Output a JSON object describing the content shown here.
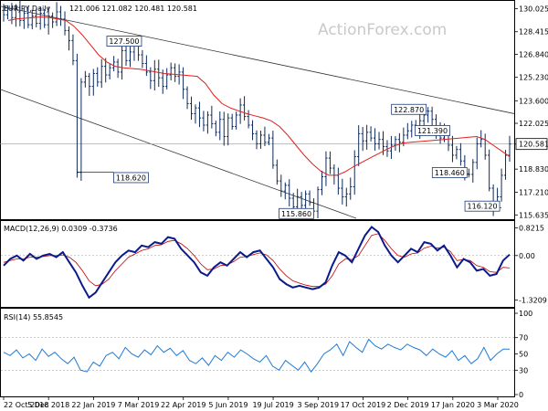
{
  "chart_data": [
    {
      "type": "candlestick",
      "title": "EURJPY,Daily",
      "ohlc_header": "121.006 121.082 120.481 120.581",
      "watermark": "ActionForex.com",
      "last_price": "120.581",
      "ylim": [
        115.4,
        130.5
      ],
      "y_ticks": [
        "130.025",
        "128.415",
        "126.840",
        "125.230",
        "123.600",
        "122.025",
        "120.581",
        "118.830",
        "117.210",
        "115.635"
      ],
      "y_tick_values": [
        130.025,
        128.415,
        126.84,
        125.23,
        123.6,
        122.025,
        120.581,
        118.83,
        117.21,
        115.635
      ],
      "annotations": [
        {
          "text": "127.500",
          "value": 127.5
        },
        {
          "text": "118.620",
          "value": 118.62
        },
        {
          "text": "115.860",
          "value": 115.86
        },
        {
          "text": "122.870",
          "value": 122.87
        },
        {
          "text": "121.390",
          "value": 121.39
        },
        {
          "text": "118.460",
          "value": 118.46
        },
        {
          "text": "116.120",
          "value": 116.12
        }
      ],
      "close_series": [
        129.6,
        130.0,
        129.4,
        130.1,
        129.2,
        129.7,
        128.9,
        129.5,
        129.0,
        129.7,
        128.9,
        129.5,
        129.1,
        129.8,
        129.3,
        128.5,
        127.8,
        126.4,
        118.6,
        124.9,
        125.3,
        124.6,
        125.5,
        124.9,
        126.0,
        125.4,
        125.9,
        126.3,
        125.6,
        127.1,
        126.4,
        127.0,
        127.5,
        126.8,
        126.2,
        125.6,
        125.0,
        125.8,
        125.2,
        124.6,
        125.4,
        125.9,
        125.3,
        125.6,
        124.4,
        123.4,
        122.7,
        123.1,
        122.4,
        121.9,
        122.6,
        122.0,
        121.4,
        122.3,
        121.1,
        122.4,
        121.8,
        122.6,
        123.3,
        122.5,
        121.9,
        121.3,
        120.6,
        121.2,
        120.7,
        121.0,
        119.1,
        118.0,
        117.3,
        117.7,
        116.8,
        116.2,
        116.9,
        116.3,
        117.1,
        116.5,
        115.9,
        117.4,
        118.3,
        119.6,
        118.9,
        118.4,
        117.5,
        116.9,
        117.1,
        117.6,
        119.7,
        121.3,
        120.8,
        121.4,
        121.0,
        120.6,
        120.9,
        120.4,
        120.1,
        120.5,
        120.9,
        120.7,
        121.2,
        121.5,
        121.9,
        121.4,
        122.2,
        122.6,
        122.87,
        122.3,
        121.6,
        121.0,
        121.39,
        120.5,
        119.8,
        120.2,
        119.4,
        118.5,
        118.46,
        119.3,
        120.6,
        120.9,
        119.8,
        117.5,
        116.12,
        116.9,
        118.4,
        119.8,
        120.581
      ],
      "ma_series": [
        129.2,
        129.3,
        129.35,
        129.4,
        129.45,
        129.4,
        129.3,
        129.2,
        128.8,
        128.2,
        127.5,
        126.8,
        126.3,
        126.0,
        125.9,
        125.85,
        125.8,
        125.7,
        125.6,
        125.5,
        125.45,
        125.4,
        125.35,
        125.3,
        124.8,
        124.0,
        123.4,
        123.1,
        122.9,
        122.7,
        122.55,
        122.4,
        122.2,
        121.8,
        121.2,
        120.5,
        119.8,
        119.2,
        118.7,
        118.4,
        118.4,
        118.65,
        119.0,
        119.3,
        119.6,
        119.9,
        120.2,
        120.45,
        120.65,
        120.7,
        120.75,
        120.8,
        120.85,
        120.9,
        120.95,
        121.0,
        121.05,
        121.1,
        120.9,
        120.5,
        120.1,
        119.7
      ],
      "x_ticks": [
        "22 Oct 2018",
        "5 Dec 2018",
        "22 Jan 2019",
        "7 Mar 2019",
        "22 Apr 2019",
        "5 Jun 2019",
        "19 Jul 2019",
        "3 Sep 2019",
        "17 Oct 2019",
        "2 Dec 2019",
        "17 Jan 2020",
        "3 Mar 2020"
      ]
    },
    {
      "type": "line",
      "title": "MACD(12,26,9) 0.0309 -0.3736",
      "ylim": [
        -1.5,
        1.0
      ],
      "y_ticks": [
        "0.8215",
        "0.00",
        "-1.3209"
      ],
      "y_tick_values": [
        0.8215,
        0.0,
        -1.3209
      ],
      "series": [
        {
          "values": [
            -0.3,
            -0.1,
            0.0,
            -0.15,
            0.05,
            -0.1,
            0.0,
            0.05,
            -0.05,
            0.1,
            -0.2,
            -0.5,
            -0.9,
            -1.25,
            -1.1,
            -0.8,
            -0.5,
            -0.2,
            0.0,
            0.15,
            0.1,
            0.3,
            0.25,
            0.4,
            0.35,
            0.55,
            0.5,
            0.2,
            0.0,
            -0.2,
            -0.5,
            -0.6,
            -0.35,
            -0.2,
            -0.3,
            -0.1,
            0.1,
            -0.05,
            0.1,
            0.15,
            -0.1,
            -0.35,
            -0.7,
            -0.85,
            -0.95,
            -0.9,
            -0.95,
            -1.0,
            -0.95,
            -0.8,
            -0.3,
            0.1,
            0.0,
            -0.2,
            0.2,
            0.6,
            0.85,
            0.7,
            0.3,
            0.0,
            -0.2,
            0.0,
            0.2,
            0.1,
            0.4,
            0.35,
            0.15,
            0.3,
            0.0,
            -0.35,
            -0.1,
            -0.2,
            -0.45,
            -0.4,
            -0.6,
            -0.55,
            -0.15,
            0.03
          ]
        },
        {
          "values": [
            -0.2,
            -0.15,
            -0.1,
            -0.1,
            -0.05,
            -0.05,
            -0.03,
            0.0,
            0.0,
            0.02,
            -0.05,
            -0.2,
            -0.45,
            -0.75,
            -0.9,
            -0.85,
            -0.7,
            -0.45,
            -0.25,
            -0.05,
            0.05,
            0.15,
            0.2,
            0.3,
            0.32,
            0.42,
            0.45,
            0.35,
            0.2,
            0.0,
            -0.25,
            -0.42,
            -0.4,
            -0.3,
            -0.28,
            -0.18,
            -0.05,
            -0.03,
            0.03,
            0.08,
            0.02,
            -0.15,
            -0.4,
            -0.6,
            -0.75,
            -0.82,
            -0.88,
            -0.92,
            -0.92,
            -0.85,
            -0.6,
            -0.25,
            -0.1,
            -0.12,
            0.0,
            0.3,
            0.6,
            0.65,
            0.45,
            0.2,
            0.0,
            -0.05,
            0.05,
            0.08,
            0.22,
            0.28,
            0.22,
            0.25,
            0.12,
            -0.15,
            -0.12,
            -0.15,
            -0.3,
            -0.35,
            -0.48,
            -0.5,
            -0.35,
            -0.37
          ]
        }
      ]
    },
    {
      "type": "line",
      "title": "RSI(14) 55.8545",
      "ylim": [
        0,
        100
      ],
      "y_ticks": [
        "100",
        "70",
        "50",
        "30",
        "0"
      ],
      "y_tick_values": [
        100,
        70,
        50,
        30,
        0
      ],
      "series": [
        {
          "values": [
            52,
            48,
            55,
            45,
            50,
            42,
            56,
            47,
            52,
            44,
            38,
            46,
            30,
            28,
            40,
            35,
            48,
            52,
            44,
            58,
            50,
            46,
            55,
            49,
            60,
            52,
            57,
            48,
            54,
            42,
            38,
            45,
            36,
            48,
            42,
            52,
            46,
            55,
            50,
            44,
            40,
            48,
            35,
            30,
            42,
            36,
            30,
            40,
            28,
            38,
            50,
            55,
            62,
            48,
            65,
            58,
            52,
            68,
            60,
            56,
            62,
            58,
            55,
            62,
            58,
            55,
            48,
            56,
            50,
            46,
            54,
            42,
            48,
            38,
            44,
            58,
            42,
            50,
            56,
            55.85
          ]
        }
      ]
    }
  ]
}
